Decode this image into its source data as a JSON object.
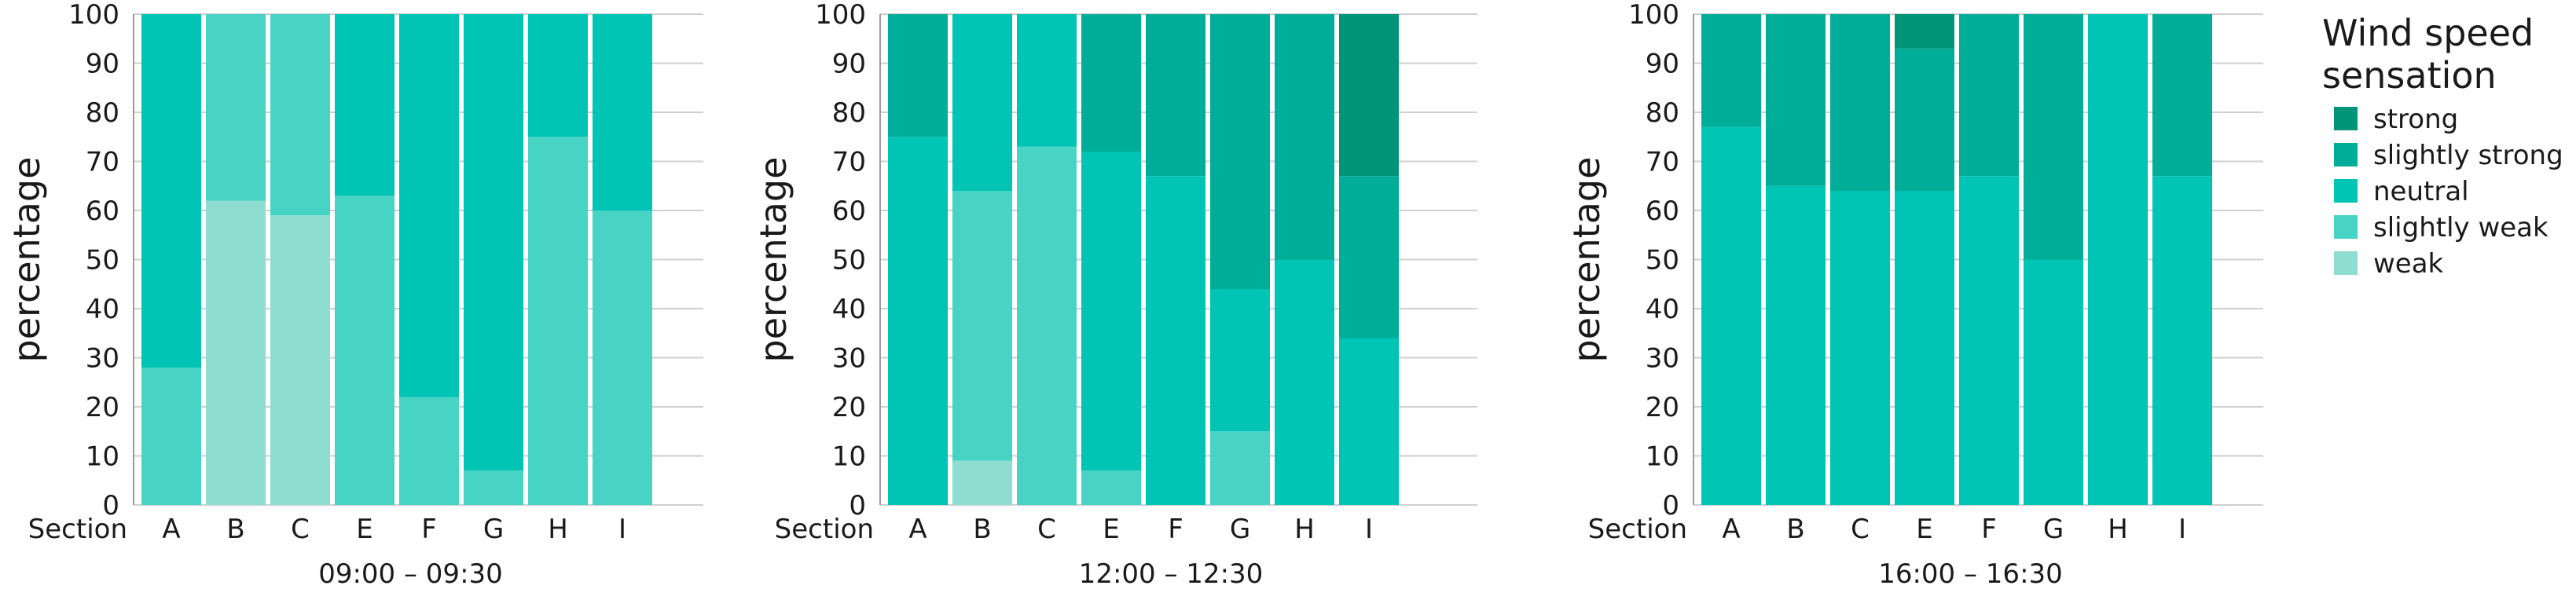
{
  "chart_data": [
    {
      "type": "bar",
      "stacked": true,
      "xlabel": "Section",
      "ylabel": "percentage",
      "period": "09:00 – 09:30",
      "ylim": [
        0,
        100
      ],
      "yticks": [
        0,
        10,
        20,
        30,
        40,
        50,
        60,
        70,
        80,
        90,
        100
      ],
      "categories": [
        "A",
        "B",
        "C",
        "E",
        "F",
        "G",
        "H",
        "I"
      ],
      "series": [
        {
          "name": "weak",
          "values": [
            0,
            62,
            59,
            0,
            0,
            0,
            0,
            0
          ]
        },
        {
          "name": "slightly weak",
          "values": [
            28,
            38,
            41,
            63,
            22,
            7,
            75,
            60
          ]
        },
        {
          "name": "neutral",
          "values": [
            72,
            0,
            0,
            37,
            78,
            93,
            25,
            40
          ]
        },
        {
          "name": "slightly strong",
          "values": [
            0,
            0,
            0,
            0,
            0,
            0,
            0,
            0
          ]
        },
        {
          "name": "strong",
          "values": [
            0,
            0,
            0,
            0,
            0,
            0,
            0,
            0
          ]
        }
      ]
    },
    {
      "type": "bar",
      "stacked": true,
      "xlabel": "Section",
      "ylabel": "percentage",
      "period": "12:00 – 12:30",
      "ylim": [
        0,
        100
      ],
      "yticks": [
        0,
        10,
        20,
        30,
        40,
        50,
        60,
        70,
        80,
        90,
        100
      ],
      "categories": [
        "A",
        "B",
        "C",
        "E",
        "F",
        "G",
        "H",
        "I"
      ],
      "series": [
        {
          "name": "weak",
          "values": [
            0,
            9,
            0,
            0,
            0,
            0,
            0,
            0
          ]
        },
        {
          "name": "slightly weak",
          "values": [
            0,
            55,
            73,
            7,
            0,
            15,
            0,
            0
          ]
        },
        {
          "name": "neutral",
          "values": [
            75,
            36,
            27,
            65,
            67,
            29,
            50,
            34
          ]
        },
        {
          "name": "slightly strong",
          "values": [
            25,
            0,
            0,
            28,
            33,
            56,
            50,
            33
          ]
        },
        {
          "name": "strong",
          "values": [
            0,
            0,
            0,
            0,
            0,
            0,
            0,
            33
          ]
        }
      ]
    },
    {
      "type": "bar",
      "stacked": true,
      "xlabel": "Section",
      "ylabel": "percentage",
      "period": "16:00 – 16:30",
      "ylim": [
        0,
        100
      ],
      "yticks": [
        0,
        10,
        20,
        30,
        40,
        50,
        60,
        70,
        80,
        90,
        100
      ],
      "categories": [
        "A",
        "B",
        "C",
        "E",
        "F",
        "G",
        "H",
        "I"
      ],
      "series": [
        {
          "name": "weak",
          "values": [
            0,
            0,
            0,
            0,
            0,
            0,
            0,
            0
          ]
        },
        {
          "name": "slightly weak",
          "values": [
            0,
            0,
            0,
            0,
            0,
            0,
            0,
            0
          ]
        },
        {
          "name": "neutral",
          "values": [
            77,
            65,
            64,
            64,
            67,
            50,
            100,
            67
          ]
        },
        {
          "name": "slightly strong",
          "values": [
            23,
            35,
            36,
            29,
            33,
            50,
            0,
            33
          ]
        },
        {
          "name": "strong",
          "values": [
            0,
            0,
            0,
            7,
            0,
            0,
            0,
            0
          ]
        }
      ]
    }
  ],
  "legend": {
    "title_line1": "Wind speed",
    "title_line2": "sensation",
    "placement": "right",
    "items": [
      {
        "label": "strong",
        "color": "#009479"
      },
      {
        "label": "slightly strong",
        "color": "#00AD98"
      },
      {
        "label": "neutral",
        "color": "#00C4B4"
      },
      {
        "label": "slightly weak",
        "color": "#47D4C4"
      },
      {
        "label": "weak",
        "color": "#8DDDD1"
      }
    ]
  },
  "colors": {
    "weak": "#8DDDD1",
    "slightly weak": "#47D4C4",
    "neutral": "#00C4B4",
    "slightly strong": "#00AD98",
    "strong": "#009479",
    "grid": "#cfcfcf",
    "axis": "#9a9a9a",
    "plot_bg": "#ffffff"
  }
}
